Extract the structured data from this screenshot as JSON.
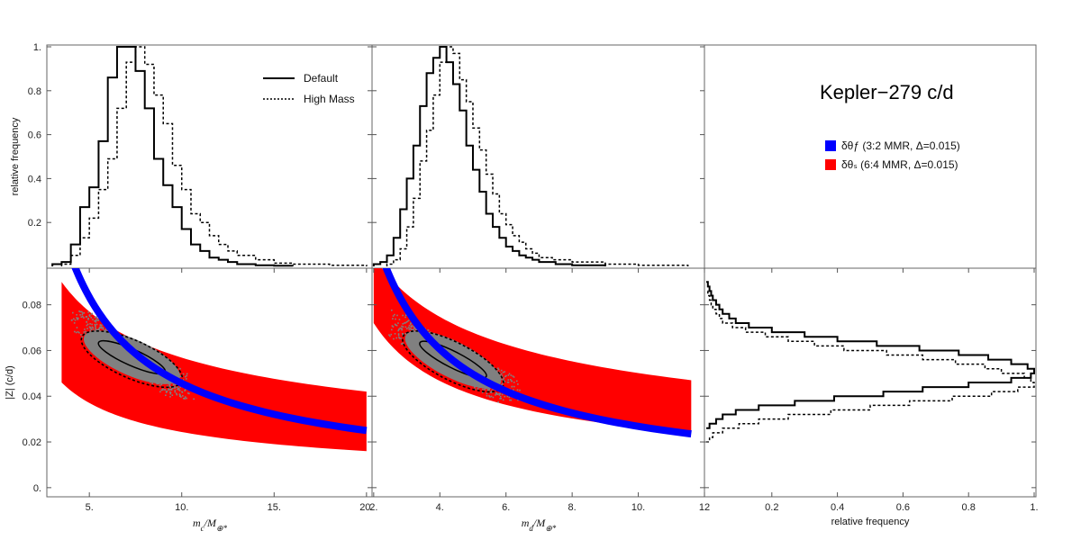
{
  "figure_title": "Kepler−279 c/d",
  "hist_legend": [
    {
      "label": "Default",
      "dash": "solid"
    },
    {
      "label": "High Mass",
      "dash": "dotted"
    }
  ],
  "region_legend": [
    {
      "label": "δθƒ (3:2 MMR, Δ=0.015)",
      "color": "#0000ff"
    },
    {
      "label": "δθₛ (6:4 MMR, Δ=0.015)",
      "color": "#ff0000"
    }
  ],
  "colors": {
    "blue": "#0000ff",
    "red": "#ff0000",
    "gray": "#808080",
    "line": "#000000"
  },
  "chart_data": [
    {
      "type": "histogram",
      "panel": "top-left",
      "xlim": [
        2.7,
        20.3
      ],
      "ylim": [
        0,
        1
      ],
      "ylabel": "relative frequency",
      "yticks": [
        0.2,
        0.4,
        0.6,
        0.8,
        1.0
      ],
      "ytick_labels": [
        "0.2",
        "0.4",
        "0.6",
        "0.8",
        "1."
      ],
      "series": [
        {
          "name": "Default",
          "dash": "solid",
          "edges": [
            3.0,
            3.5,
            4.0,
            4.5,
            5.0,
            5.5,
            6.0,
            6.5,
            7.0,
            7.5,
            8.0,
            8.5,
            9.0,
            9.5,
            10.0,
            10.5,
            11.0,
            11.5,
            12.0,
            12.5,
            13.0,
            14.0,
            15.0,
            16.0
          ],
          "values": [
            0.01,
            0.02,
            0.1,
            0.27,
            0.36,
            0.57,
            0.86,
            1.0,
            1.0,
            0.89,
            0.72,
            0.49,
            0.37,
            0.27,
            0.17,
            0.1,
            0.07,
            0.04,
            0.03,
            0.02,
            0.01,
            0.005,
            0.003
          ]
        },
        {
          "name": "High Mass",
          "dash": "dotted",
          "edges": [
            3.5,
            4.0,
            4.5,
            5.0,
            5.5,
            6.0,
            6.5,
            7.0,
            7.5,
            8.0,
            8.5,
            9.0,
            9.5,
            10.0,
            10.5,
            11.0,
            11.5,
            12.0,
            12.5,
            13.0,
            14.0,
            15.0,
            16.0,
            18.0,
            20.0
          ],
          "values": [
            0.01,
            0.05,
            0.13,
            0.22,
            0.35,
            0.49,
            0.72,
            0.93,
            1.0,
            0.92,
            0.78,
            0.65,
            0.46,
            0.35,
            0.24,
            0.2,
            0.14,
            0.1,
            0.07,
            0.05,
            0.03,
            0.015,
            0.01,
            0.005
          ]
        }
      ]
    },
    {
      "type": "histogram",
      "panel": "top-middle",
      "xlim": [
        1.95,
        12.0
      ],
      "ylim": [
        0,
        1
      ],
      "series": [
        {
          "name": "Default",
          "dash": "solid",
          "edges": [
            2.0,
            2.2,
            2.4,
            2.6,
            2.8,
            3.0,
            3.2,
            3.4,
            3.6,
            3.8,
            4.0,
            4.2,
            4.4,
            4.6,
            4.8,
            5.0,
            5.2,
            5.4,
            5.6,
            5.8,
            6.0,
            6.2,
            6.4,
            6.6,
            6.8,
            7.0,
            7.5,
            8.0,
            9.0
          ],
          "values": [
            0.01,
            0.02,
            0.05,
            0.13,
            0.26,
            0.4,
            0.55,
            0.73,
            0.88,
            0.95,
            1.0,
            0.93,
            0.83,
            0.71,
            0.55,
            0.44,
            0.34,
            0.24,
            0.18,
            0.13,
            0.09,
            0.07,
            0.05,
            0.04,
            0.03,
            0.02,
            0.01,
            0.005
          ]
        },
        {
          "name": "High Mass",
          "dash": "dotted",
          "edges": [
            2.4,
            2.6,
            2.8,
            3.0,
            3.2,
            3.4,
            3.6,
            3.8,
            4.0,
            4.2,
            4.4,
            4.6,
            4.8,
            5.0,
            5.2,
            5.4,
            5.6,
            5.8,
            6.0,
            6.2,
            6.4,
            6.6,
            6.8,
            7.0,
            7.4,
            8.0,
            9.0,
            10.0,
            11.5
          ],
          "values": [
            0.01,
            0.03,
            0.08,
            0.18,
            0.31,
            0.48,
            0.62,
            0.78,
            0.93,
            1.0,
            0.97,
            0.85,
            0.75,
            0.63,
            0.53,
            0.42,
            0.33,
            0.24,
            0.19,
            0.14,
            0.11,
            0.08,
            0.06,
            0.04,
            0.03,
            0.02,
            0.01,
            0.005
          ]
        }
      ]
    },
    {
      "type": "scatter-regions",
      "panel": "bottom-left",
      "xlim": [
        2.7,
        20.3
      ],
      "ylim": [
        -0.004,
        0.096
      ],
      "xlabel": "m_c/M_⊕*",
      "ylabel": "|Z| (c/d)",
      "xticks": [
        5,
        10,
        15,
        20
      ],
      "xtick_labels": [
        "5.",
        "10.",
        "15.",
        "20."
      ],
      "yticks": [
        0,
        0.02,
        0.04,
        0.06,
        0.08
      ],
      "ytick_labels": [
        "0.",
        "0.02",
        "0.04",
        "0.06",
        "0.08"
      ],
      "red_band": {
        "x_start": 3.5,
        "x_end": 20.0,
        "upper_at_start": 0.09,
        "upper_at_end": 0.042,
        "lower_at_start": 0.046,
        "lower_at_end": 0.016
      },
      "blue_curve": {
        "x_start": 4.1,
        "x_end": 20.0,
        "y_at_start": 0.099,
        "y_at_end": 0.025
      },
      "cloud_center": {
        "x": 7.3,
        "y": 0.057
      },
      "contours": [
        {
          "level": "inner",
          "dash": "solid"
        },
        {
          "level": "outer",
          "dash": "dotted"
        }
      ]
    },
    {
      "type": "scatter-regions",
      "panel": "bottom-middle",
      "xlim": [
        1.95,
        12.0
      ],
      "ylim": [
        -0.004,
        0.096
      ],
      "xlabel": "m_d/M_⊕*",
      "xticks": [
        2,
        4,
        6,
        8,
        10,
        12
      ],
      "xtick_labels": [
        "2.",
        "4.",
        "6.",
        "8.",
        "10.",
        "12"
      ],
      "red_band": {
        "x_start": 2.0,
        "x_end": 11.6,
        "upper_at_start": 0.101,
        "upper_at_end": 0.047,
        "lower_at_start": 0.072,
        "lower_at_end": 0.024
      },
      "blue_curve": {
        "x_start": 2.3,
        "x_end": 11.6,
        "y_at_start": 0.099,
        "y_at_end": 0.0235
      },
      "cloud_center": {
        "x": 4.4,
        "y": 0.056
      }
    },
    {
      "type": "histogram",
      "orientation": "horizontal",
      "panel": "bottom-right",
      "xlim": [
        0,
        1.0
      ],
      "ylim": [
        -0.004,
        0.096
      ],
      "xlabel": "relative frequency",
      "xticks": [
        0.2,
        0.4,
        0.6,
        0.8,
        1.0
      ],
      "xtick_labels": [
        "0.2",
        "0.4",
        "0.6",
        "0.8",
        "1."
      ],
      "series": [
        {
          "name": "Default",
          "dash": "solid",
          "edges": [
            0.026,
            0.028,
            0.03,
            0.032,
            0.034,
            0.036,
            0.038,
            0.04,
            0.042,
            0.044,
            0.046,
            0.048,
            0.05,
            0.052,
            0.054,
            0.056,
            0.058,
            0.06,
            0.062,
            0.064,
            0.066,
            0.068,
            0.07,
            0.072,
            0.074,
            0.076,
            0.078,
            0.08,
            0.082,
            0.084,
            0.086,
            0.088,
            0.09
          ],
          "values": [
            0.01,
            0.03,
            0.05,
            0.09,
            0.16,
            0.27,
            0.39,
            0.54,
            0.66,
            0.8,
            0.93,
            0.99,
            1.0,
            0.98,
            0.93,
            0.86,
            0.77,
            0.65,
            0.52,
            0.4,
            0.3,
            0.2,
            0.13,
            0.09,
            0.07,
            0.05,
            0.04,
            0.03,
            0.02,
            0.015,
            0.01,
            0.005
          ]
        },
        {
          "name": "High Mass",
          "dash": "dotted",
          "edges": [
            0.02,
            0.022,
            0.024,
            0.026,
            0.028,
            0.03,
            0.032,
            0.034,
            0.036,
            0.038,
            0.04,
            0.042,
            0.044,
            0.046,
            0.048,
            0.05,
            0.052,
            0.054,
            0.056,
            0.058,
            0.06,
            0.062,
            0.064,
            0.066,
            0.068,
            0.07,
            0.072,
            0.074,
            0.076,
            0.078,
            0.08,
            0.082,
            0.084,
            0.086
          ],
          "values": [
            0.01,
            0.02,
            0.05,
            0.1,
            0.16,
            0.25,
            0.38,
            0.5,
            0.62,
            0.75,
            0.87,
            0.95,
            1.0,
            0.99,
            0.97,
            0.9,
            0.85,
            0.76,
            0.66,
            0.55,
            0.42,
            0.33,
            0.25,
            0.18,
            0.12,
            0.08,
            0.05,
            0.04,
            0.03,
            0.02,
            0.015,
            0.01,
            0.005
          ]
        }
      ]
    }
  ]
}
